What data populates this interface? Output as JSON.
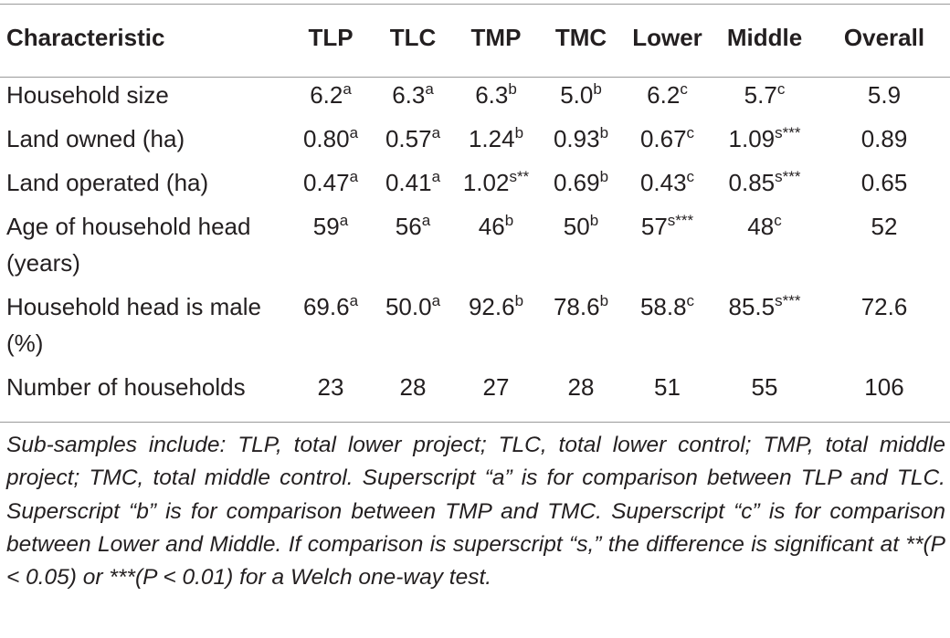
{
  "table": {
    "headers": [
      "Characteristic",
      "TLP",
      "TLC",
      "TMP",
      "TMC",
      "Lower",
      "Middle",
      "Overall"
    ],
    "rows": [
      {
        "label": "Household size",
        "cells": [
          {
            "v": "6.2",
            "s": "a"
          },
          {
            "v": "6.3",
            "s": "a"
          },
          {
            "v": "6.3",
            "s": "b"
          },
          {
            "v": "5.0",
            "s": "b"
          },
          {
            "v": "6.2",
            "s": "c"
          },
          {
            "v": "5.7",
            "s": "c"
          },
          {
            "v": "5.9",
            "s": ""
          }
        ]
      },
      {
        "label": "Land owned (ha)",
        "cells": [
          {
            "v": "0.80",
            "s": "a"
          },
          {
            "v": "0.57",
            "s": "a"
          },
          {
            "v": "1.24",
            "s": "b"
          },
          {
            "v": "0.93",
            "s": "b"
          },
          {
            "v": "0.67",
            "s": "c"
          },
          {
            "v": "1.09",
            "s": "s***"
          },
          {
            "v": "0.89",
            "s": ""
          }
        ]
      },
      {
        "label": "Land operated (ha)",
        "cells": [
          {
            "v": "0.47",
            "s": "a"
          },
          {
            "v": "0.41",
            "s": "a"
          },
          {
            "v": "1.02",
            "s": "s**"
          },
          {
            "v": "0.69",
            "s": "b"
          },
          {
            "v": "0.43",
            "s": "c"
          },
          {
            "v": "0.85",
            "s": "s***"
          },
          {
            "v": "0.65",
            "s": ""
          }
        ]
      },
      {
        "label": "Age of household head (years)",
        "cells": [
          {
            "v": "59",
            "s": "a"
          },
          {
            "v": "56",
            "s": "a"
          },
          {
            "v": "46",
            "s": "b"
          },
          {
            "v": "50",
            "s": "b"
          },
          {
            "v": "57",
            "s": "s***"
          },
          {
            "v": "48",
            "s": "c"
          },
          {
            "v": "52",
            "s": ""
          }
        ]
      },
      {
        "label": "Household head is male (%)",
        "cells": [
          {
            "v": "69.6",
            "s": "a"
          },
          {
            "v": "50.0",
            "s": "a"
          },
          {
            "v": "92.6",
            "s": "b"
          },
          {
            "v": "78.6",
            "s": "b"
          },
          {
            "v": "58.8",
            "s": "c"
          },
          {
            "v": "85.5",
            "s": "s***"
          },
          {
            "v": "72.6",
            "s": ""
          }
        ]
      },
      {
        "label": "Number of households",
        "cells": [
          {
            "v": "23",
            "s": ""
          },
          {
            "v": "28",
            "s": ""
          },
          {
            "v": "27",
            "s": ""
          },
          {
            "v": "28",
            "s": ""
          },
          {
            "v": "51",
            "s": ""
          },
          {
            "v": "55",
            "s": ""
          },
          {
            "v": "106",
            "s": ""
          }
        ]
      }
    ]
  },
  "footnote": "Sub-samples include: TLP, total lower project; TLC, total lower control; TMP, total middle project; TMC, total middle control. Superscript “a” is for comparison between TLP and TLC. Superscript “b” is for comparison between TMP and TMC. Superscript “c” is for comparison between Lower and Middle. If comparison is superscript “s,” the difference is significant at **(P < 0.05) or ***(P < 0.01) for a Welch one-way test."
}
